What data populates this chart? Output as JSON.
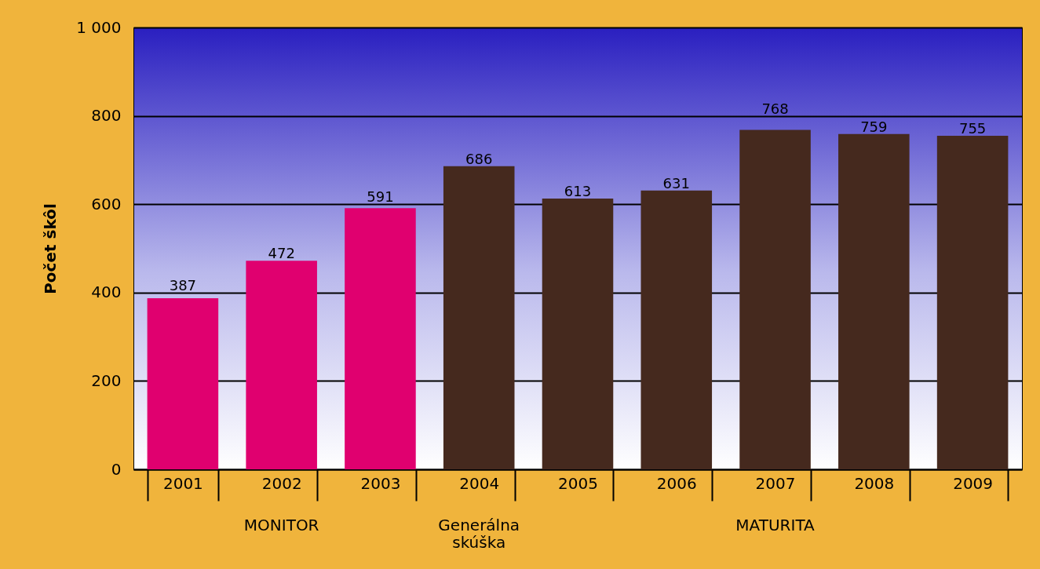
{
  "chart_data": {
    "type": "bar",
    "ylabel": "Počet škôl",
    "categories": [
      "2001",
      "2002",
      "2003",
      "2004",
      "2005",
      "2006",
      "2007",
      "2008",
      "2009"
    ],
    "values": [
      387,
      472,
      591,
      686,
      613,
      631,
      768,
      759,
      755
    ],
    "colors": [
      "#e0006f",
      "#e0006f",
      "#e0006f",
      "#45291e",
      "#45291e",
      "#45291e",
      "#45291e",
      "#45291e",
      "#45291e"
    ],
    "ylim": [
      0,
      1000
    ],
    "yticks": [
      0,
      200,
      400,
      600,
      800,
      {
        "value": 1000,
        "label": "1 000"
      }
    ],
    "grid": "y",
    "data_labels": true,
    "annotations": [
      "MONITOR",
      "Generálna skúška",
      "MATURITA"
    ]
  }
}
